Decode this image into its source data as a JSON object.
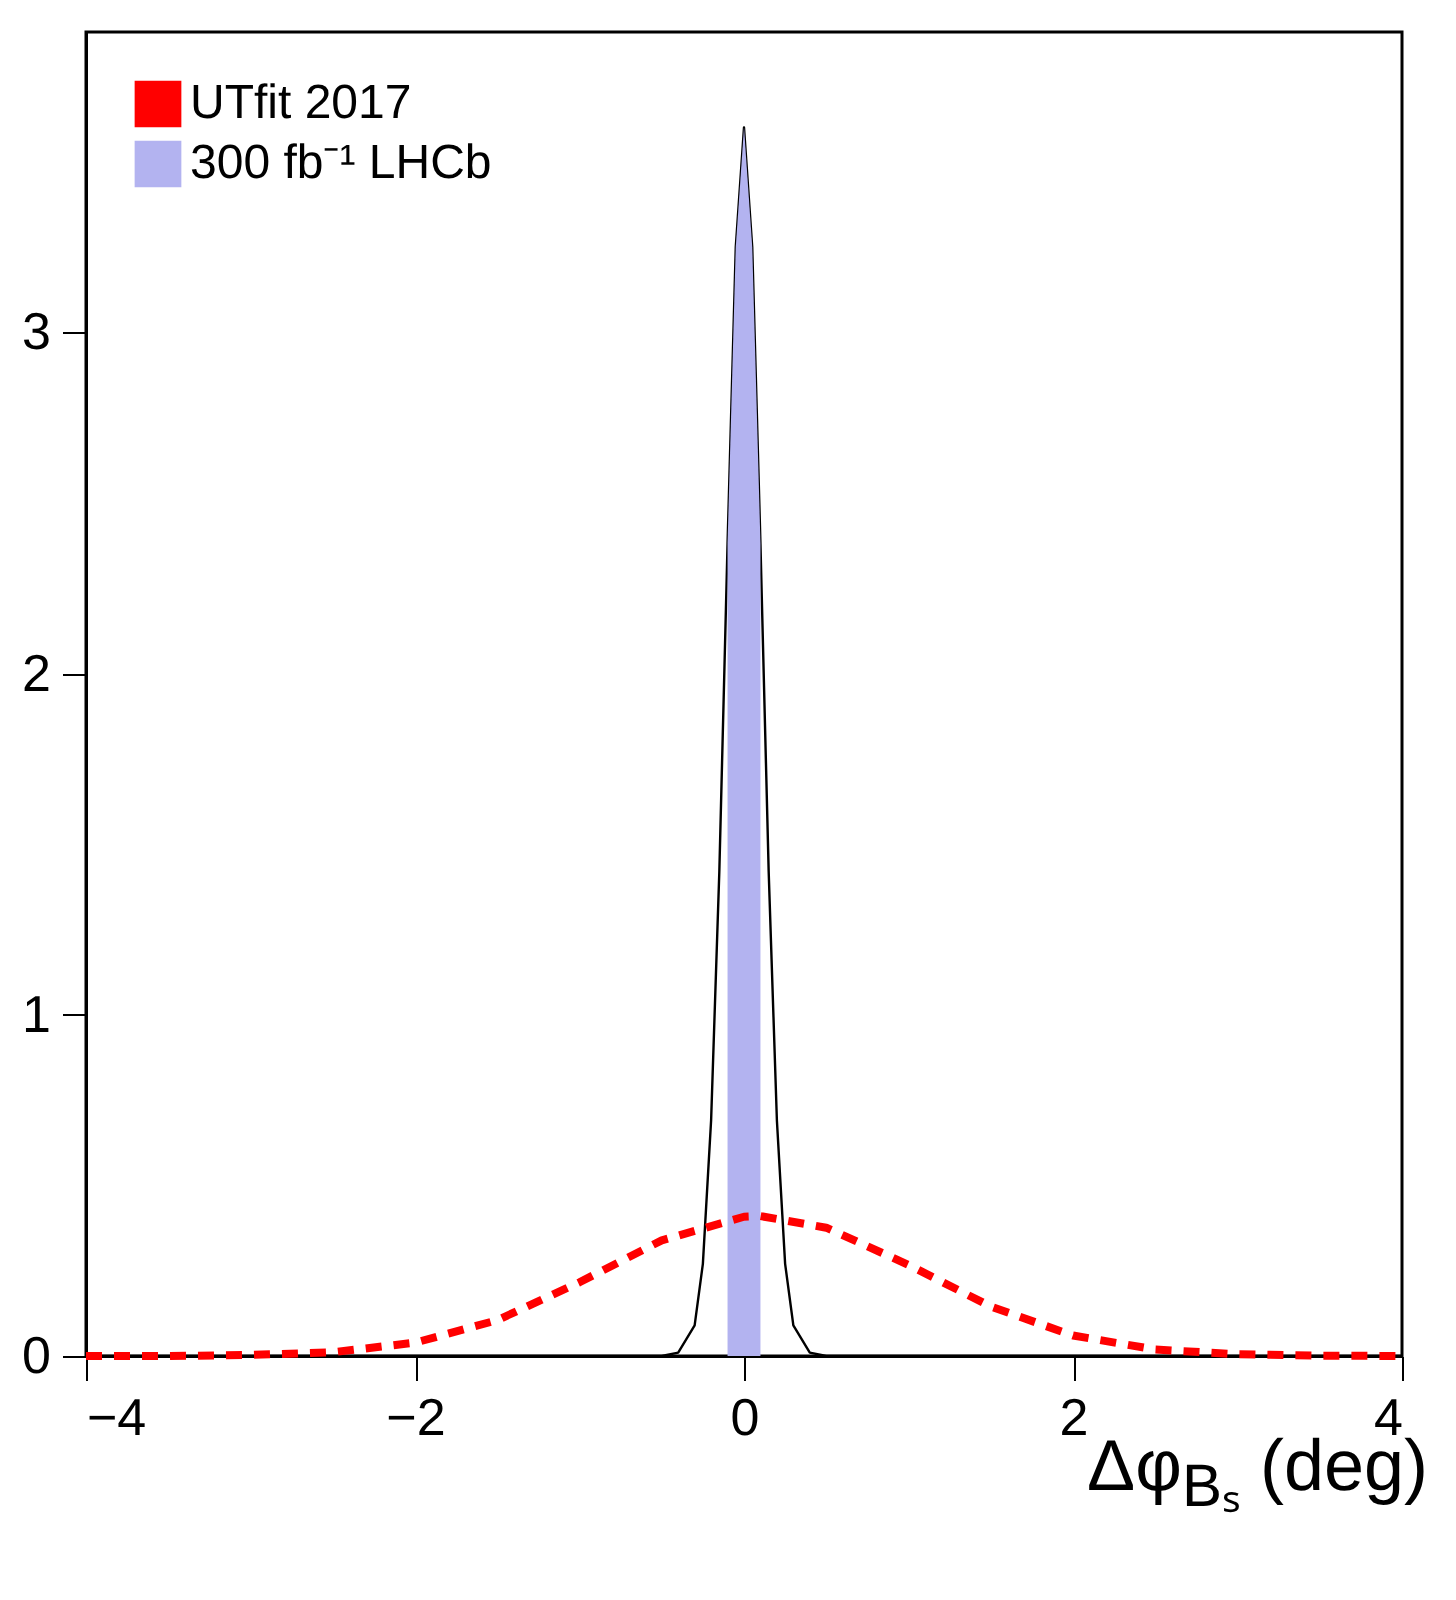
{
  "chart_data": {
    "type": "line",
    "xlabel": "Δφ$_{Bₛ}$ (deg)",
    "xlim": [
      -4,
      4
    ],
    "xticks": [
      -4,
      -2,
      0,
      2,
      4
    ],
    "ylim": [
      0,
      3.88
    ],
    "yticks": [
      0,
      1,
      2,
      3
    ],
    "grid": false,
    "legend": "top left",
    "series": [
      {
        "name": "UTfit 2017",
        "type": "line",
        "color": "#ff0000",
        "line_style": "dashed",
        "x": [
          -4,
          -3.5,
          -3,
          -2.5,
          -2,
          -1.5,
          -1,
          -0.5,
          0,
          0.1,
          0.5,
          1,
          1.5,
          2,
          2.5,
          3,
          3.5,
          4
        ],
        "values": [
          0,
          0,
          0.003,
          0.011,
          0.039,
          0.105,
          0.216,
          0.339,
          0.408,
          0.41,
          0.376,
          0.267,
          0.145,
          0.06,
          0.019,
          0.005,
          0.001,
          0
        ]
      },
      {
        "name": "300 fb⁻¹ LHCb",
        "type": "area",
        "color": "#b3b3f0",
        "x": [
          -0.1,
          -0.05,
          0,
          0.05,
          0.1
        ],
        "values": [
          2.38,
          3.25,
          3.6,
          3.25,
          2.38
        ]
      },
      {
        "type": "line",
        "color": "#000000",
        "line_style": "solid",
        "x": [
          -4,
          -0.5,
          -0.4,
          -0.3,
          -0.25,
          -0.2,
          -0.15,
          -0.1,
          -0.05,
          0,
          0.05,
          0.1,
          0.15,
          0.2,
          0.25,
          0.3,
          0.4,
          0.5,
          4
        ],
        "values": [
          0,
          0,
          0.01,
          0.09,
          0.27,
          0.69,
          1.42,
          2.38,
          3.25,
          3.6,
          3.25,
          2.38,
          1.42,
          0.69,
          0.27,
          0.09,
          0.01,
          0,
          0
        ]
      }
    ]
  }
}
